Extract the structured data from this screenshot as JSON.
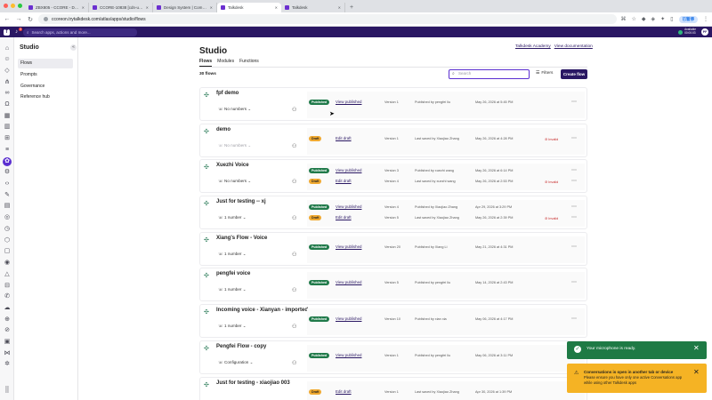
{
  "browser": {
    "tabs": [
      {
        "label": "ZBX805 - CCORE - Dev Stu..."
      },
      {
        "label": "CCORE-10838 [cdn-ui] MU..."
      },
      {
        "label": "Design System | Componen..."
      },
      {
        "label": "Talkdesk"
      },
      {
        "label": "Talkdesk"
      }
    ],
    "new_tab": "+",
    "url": "ccoreon.trytalkdesk.com/atlas/apps/studio/flows",
    "profile": "已暂停"
  },
  "app": {
    "logo": "T",
    "notification_count": "3",
    "search_placeholder": "Search apps, actions and more...",
    "status_line1": "Available",
    "status_line2": "00:00:03",
    "user_initials": "PF"
  },
  "sidenav": {
    "title": "Studio",
    "collapse": "«",
    "items": [
      {
        "label": "Flows"
      },
      {
        "label": "Prompts"
      },
      {
        "label": "Governance"
      },
      {
        "label": "Reference hub"
      }
    ]
  },
  "main": {
    "title": "Studio",
    "links": {
      "academy": "Talkdesk Academy",
      "docs": "View documentation"
    },
    "tabs": [
      {
        "label": "Flows"
      },
      {
        "label": "Modules"
      },
      {
        "label": "Functions"
      }
    ],
    "count": "30 flows",
    "search_placeholder": "Search",
    "filters": "Filters",
    "create": "Create flow"
  },
  "flows": [
    {
      "name": "fpf demo",
      "numbers": "No numbers",
      "versions": [
        {
          "status": "Published",
          "action": "View published",
          "version": "Version 1",
          "by": "Published by pengfei liu",
          "date": "May 26, 2026 at 5:45 PM",
          "invalid": ""
        }
      ]
    },
    {
      "name": "demo",
      "numbers": "No numbers",
      "versions": [
        {
          "status": "Draft",
          "action": "Edit draft",
          "version": "Version 1",
          "by": "Last saved by Xiaojiao Zhang",
          "date": "May 26, 2026 at 4:28 PM",
          "invalid": "Invalid"
        }
      ]
    },
    {
      "name": "Xuezhi Voice",
      "numbers": "No numbers",
      "versions": [
        {
          "status": "Published",
          "action": "View published",
          "version": "Version 3",
          "by": "Published by xuezhi wang",
          "date": "May 26, 2026 at 6:14 PM",
          "invalid": ""
        },
        {
          "status": "Draft",
          "action": "Edit draft",
          "version": "Version 4",
          "by": "Last saved by xuezhi wang",
          "date": "May 26, 2026 at 2:53 PM",
          "invalid": "Invalid"
        }
      ]
    },
    {
      "name": "Just for testing -- xj",
      "numbers": "1 number",
      "versions": [
        {
          "status": "Published",
          "action": "View published",
          "version": "Version 4",
          "by": "Published by Xiaojiao Zhang",
          "date": "Apr 29, 2026 at 3:29 PM",
          "invalid": ""
        },
        {
          "status": "Draft",
          "action": "Edit draft",
          "version": "Version 5",
          "by": "Last saved by Xiaojiao Zhang",
          "date": "May 26, 2026 at 2:39 PM",
          "invalid": "Invalid"
        }
      ]
    },
    {
      "name": "Xiang's Flow - Voice",
      "numbers": "1 number",
      "versions": [
        {
          "status": "Published",
          "action": "View published",
          "version": "Version 20",
          "by": "Published by Xiang Li",
          "date": "May 21, 2026 at 4:31 PM",
          "invalid": ""
        }
      ]
    },
    {
      "name": "pengfei voice",
      "numbers": "1 number",
      "versions": [
        {
          "status": "Published",
          "action": "View published",
          "version": "Version 5",
          "by": "Published by pengfei liu",
          "date": "May 14, 2026 at 2:43 PM",
          "invalid": ""
        }
      ]
    },
    {
      "name": "Incoming voice - Xianyan - imported",
      "numbers": "1 number",
      "versions": [
        {
          "status": "Published",
          "action": "View published",
          "version": "Version 10",
          "by": "Published by xian xia",
          "date": "May 06, 2026 at 4:17 PM",
          "invalid": ""
        }
      ]
    },
    {
      "name": "Pengfei Flow - copy",
      "numbers": "Configuration",
      "versions": [
        {
          "status": "Published",
          "action": "View published",
          "version": "Version 1",
          "by": "Published by pengfei liu",
          "date": "May 06, 2026 at 3:11 PM",
          "invalid": ""
        }
      ]
    },
    {
      "name": "Just for testing - xiaojiao 003",
      "numbers": "",
      "versions": [
        {
          "status": "Draft",
          "action": "Edit draft",
          "version": "Version 1",
          "by": "Last saved by Xiaojiao Zhang",
          "date": "Apr 30, 2026 at 1:39 PM",
          "invalid": ""
        }
      ]
    }
  ],
  "toasts": {
    "mic": "Your microphone is ready.",
    "warn_title": "Conversations is open in another tab or device",
    "warn_body": "Please ensure you have only one active Conversations app while using other Talkdesk apps"
  }
}
